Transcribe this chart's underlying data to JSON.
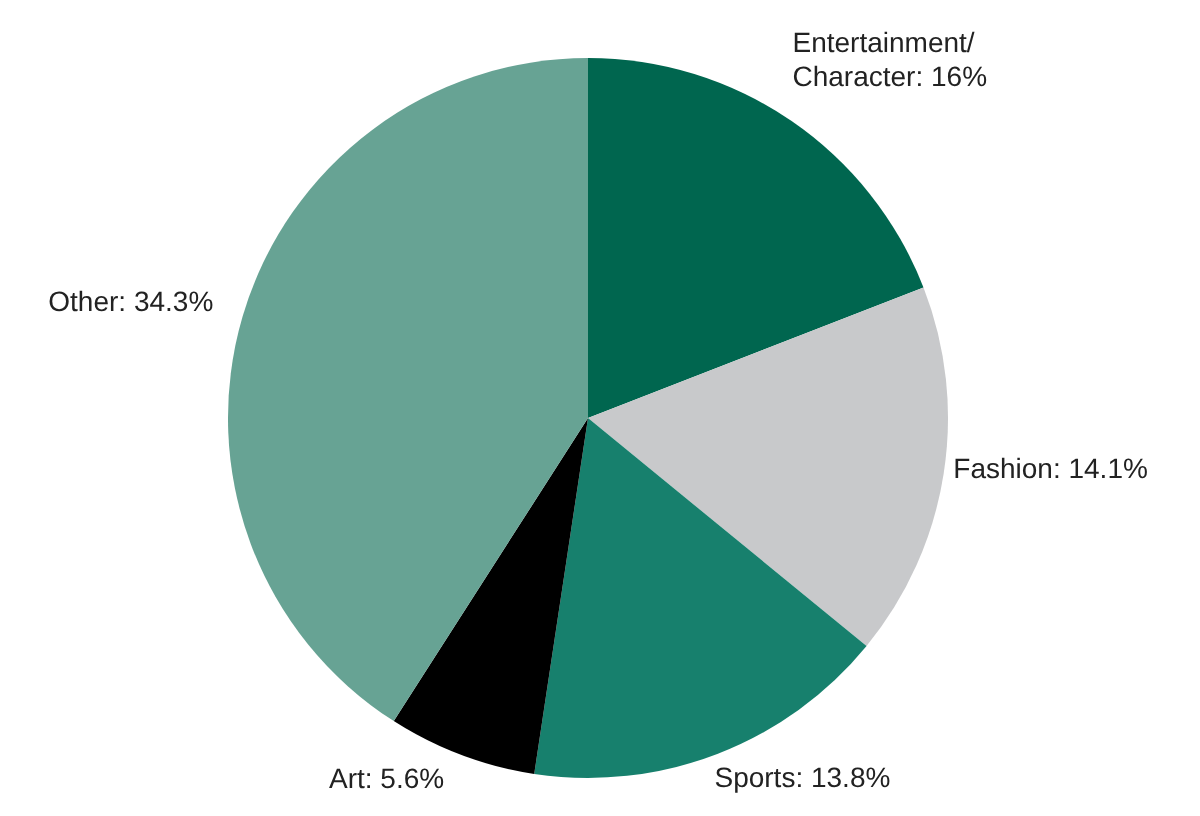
{
  "chart_data": {
    "type": "pie",
    "categories": [
      "Entertainment/Character",
      "Fashion",
      "Sports",
      "Art",
      "Other"
    ],
    "values": [
      16,
      14.1,
      13.8,
      5.6,
      34.3
    ],
    "value_labels": [
      "16%",
      "14.1%",
      "13.8%",
      "5.6%",
      "34.3%"
    ],
    "colors": [
      "#00664f",
      "#c8c9cb",
      "#17806d",
      "#000000",
      "#67a394"
    ],
    "legend": false
  }
}
